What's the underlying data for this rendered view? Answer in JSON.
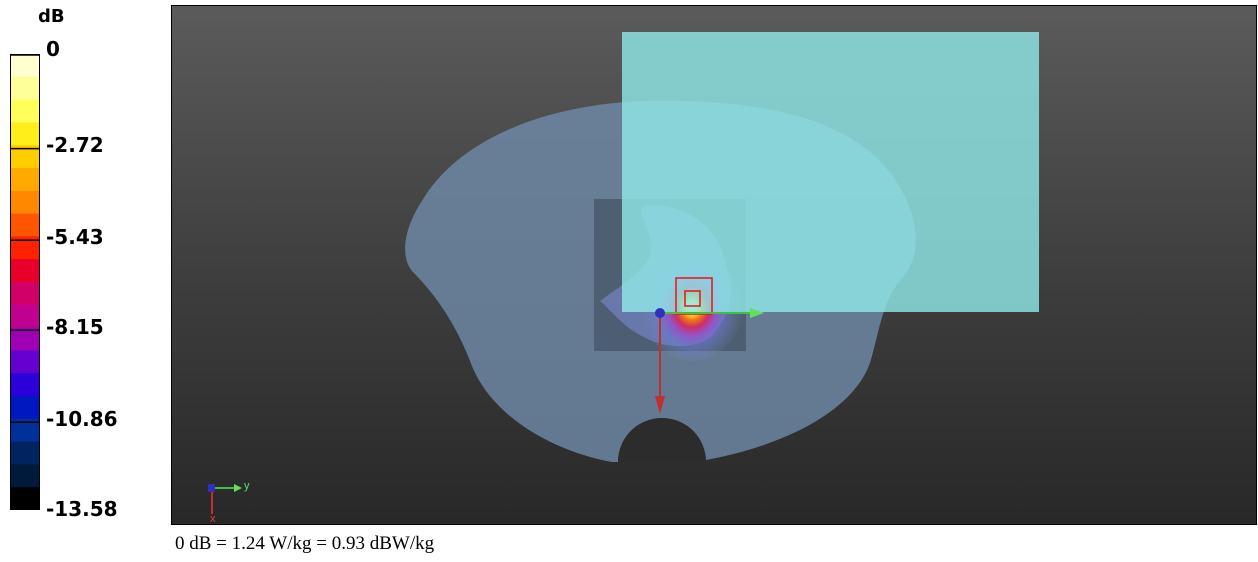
{
  "colorbar": {
    "unit_label": "dB",
    "ticks": [
      "0",
      "-2.72",
      "-5.43",
      "-8.15",
      "-10.86",
      "-13.58"
    ],
    "colors_top_to_bottom": [
      "#ffffd0",
      "#ffff9a",
      "#ffff5a",
      "#ffee1a",
      "#ffcc00",
      "#ffaa00",
      "#ff8800",
      "#ff5500",
      "#ff2200",
      "#e8002a",
      "#d00066",
      "#c0008e",
      "#a000b4",
      "#6400d0",
      "#2c00d8",
      "#0018c0",
      "#00309a",
      "#002460",
      "#001a3c",
      "#000000"
    ]
  },
  "viewport": {
    "background_color": "#3f3f3f",
    "phantom_color": "#6f8aa8",
    "box_color": "#8fe6e6",
    "axis_labels": {
      "y": "y",
      "x": "x"
    }
  },
  "caption": "0 dB = 1.24 W/kg = 0.93 dBW/kg"
}
